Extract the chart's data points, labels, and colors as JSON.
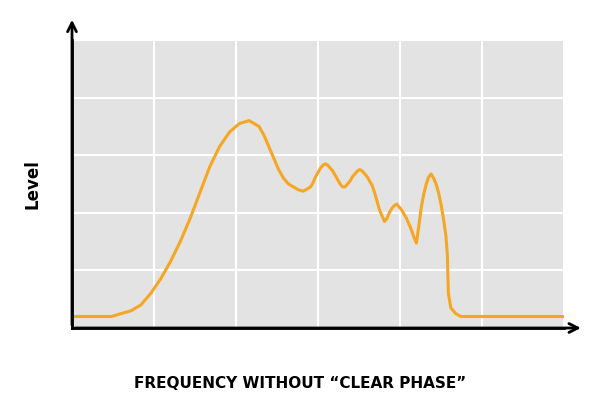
{
  "title": "FREQUENCY WITHOUT “CLEAR PHASE”",
  "ylabel": "Level",
  "line_color": "#F5A623",
  "line_width": 2.2,
  "bg_color": "#E3E3E3",
  "fig_color": "#FFFFFF",
  "grid_color": "#FFFFFF",
  "xlim": [
    0,
    1.0
  ],
  "ylim": [
    0,
    1.0
  ],
  "x": [
    0.0,
    0.02,
    0.04,
    0.06,
    0.08,
    0.1,
    0.12,
    0.14,
    0.16,
    0.18,
    0.2,
    0.22,
    0.24,
    0.26,
    0.28,
    0.3,
    0.32,
    0.34,
    0.36,
    0.37,
    0.38,
    0.39,
    0.4,
    0.41,
    0.42,
    0.43,
    0.44,
    0.45,
    0.46,
    0.47,
    0.475,
    0.48,
    0.485,
    0.49,
    0.495,
    0.5,
    0.505,
    0.51,
    0.515,
    0.52,
    0.525,
    0.53,
    0.535,
    0.54,
    0.545,
    0.55,
    0.555,
    0.56,
    0.565,
    0.57,
    0.575,
    0.58,
    0.585,
    0.59,
    0.595,
    0.6,
    0.605,
    0.61,
    0.615,
    0.62,
    0.625,
    0.63,
    0.635,
    0.64,
    0.645,
    0.65,
    0.655,
    0.66,
    0.665,
    0.67,
    0.675,
    0.68,
    0.685,
    0.69,
    0.695,
    0.7,
    0.705,
    0.71,
    0.715,
    0.72,
    0.725,
    0.73,
    0.735,
    0.74,
    0.745,
    0.75,
    0.755,
    0.76,
    0.763,
    0.764,
    0.765,
    0.77,
    0.78,
    0.79,
    0.8,
    0.81,
    0.82,
    0.83,
    0.84,
    0.85,
    0.86,
    0.87,
    0.88,
    0.89,
    0.9,
    0.91,
    0.92,
    0.93,
    0.94,
    0.95,
    0.96,
    0.97,
    0.98,
    0.99,
    1.0
  ],
  "y": [
    0.04,
    0.04,
    0.04,
    0.04,
    0.04,
    0.05,
    0.06,
    0.08,
    0.12,
    0.17,
    0.23,
    0.3,
    0.38,
    0.47,
    0.56,
    0.63,
    0.68,
    0.71,
    0.72,
    0.71,
    0.7,
    0.67,
    0.63,
    0.59,
    0.55,
    0.52,
    0.5,
    0.49,
    0.48,
    0.475,
    0.48,
    0.485,
    0.49,
    0.505,
    0.525,
    0.54,
    0.555,
    0.565,
    0.57,
    0.565,
    0.555,
    0.545,
    0.53,
    0.515,
    0.5,
    0.49,
    0.49,
    0.5,
    0.51,
    0.525,
    0.535,
    0.545,
    0.55,
    0.545,
    0.535,
    0.525,
    0.51,
    0.495,
    0.47,
    0.44,
    0.41,
    0.39,
    0.37,
    0.38,
    0.4,
    0.415,
    0.425,
    0.43,
    0.42,
    0.41,
    0.395,
    0.38,
    0.36,
    0.34,
    0.315,
    0.295,
    0.355,
    0.42,
    0.465,
    0.5,
    0.525,
    0.535,
    0.52,
    0.5,
    0.47,
    0.43,
    0.38,
    0.32,
    0.25,
    0.18,
    0.12,
    0.07,
    0.05,
    0.04,
    0.04,
    0.04,
    0.04,
    0.04,
    0.04,
    0.04,
    0.04,
    0.04,
    0.04,
    0.04,
    0.04,
    0.04,
    0.04,
    0.04,
    0.04,
    0.04,
    0.04,
    0.04,
    0.04,
    0.04,
    0.04
  ]
}
